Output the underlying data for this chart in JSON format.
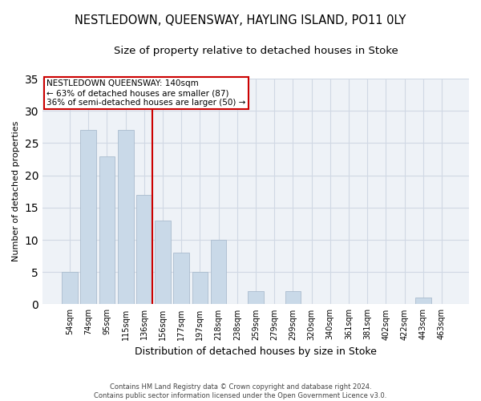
{
  "title": "NESTLEDOWN, QUEENSWAY, HAYLING ISLAND, PO11 0LY",
  "subtitle": "Size of property relative to detached houses in Stoke",
  "xlabel": "Distribution of detached houses by size in Stoke",
  "ylabel": "Number of detached properties",
  "categories": [
    "54sqm",
    "74sqm",
    "95sqm",
    "115sqm",
    "136sqm",
    "156sqm",
    "177sqm",
    "197sqm",
    "218sqm",
    "238sqm",
    "259sqm",
    "279sqm",
    "299sqm",
    "320sqm",
    "340sqm",
    "361sqm",
    "381sqm",
    "402sqm",
    "422sqm",
    "443sqm",
    "463sqm"
  ],
  "values": [
    5,
    27,
    23,
    27,
    17,
    13,
    8,
    5,
    10,
    0,
    2,
    0,
    2,
    0,
    0,
    0,
    0,
    0,
    0,
    1,
    0
  ],
  "bar_color": "#c9d9e8",
  "bar_edge_color": "#aabcce",
  "vline_x_index": 4,
  "vline_color": "#cc0000",
  "annotation_title": "NESTLEDOWN QUEENSWAY: 140sqm",
  "annotation_line1": "← 63% of detached houses are smaller (87)",
  "annotation_line2": "36% of semi-detached houses are larger (50) →",
  "annotation_box_color": "#ffffff",
  "annotation_box_edge_color": "#cc0000",
  "ylim": [
    0,
    35
  ],
  "yticks": [
    0,
    5,
    10,
    15,
    20,
    25,
    30,
    35
  ],
  "footer": "Contains HM Land Registry data © Crown copyright and database right 2024.\nContains public sector information licensed under the Open Government Licence v3.0.",
  "bg_color": "#ffffff",
  "plot_bg_color": "#eef2f7",
  "grid_color": "#d0d8e4",
  "title_fontsize": 10.5,
  "subtitle_fontsize": 9.5,
  "xlabel_fontsize": 9,
  "ylabel_fontsize": 8,
  "tick_fontsize": 7,
  "ann_fontsize": 7.5,
  "footer_fontsize": 6
}
